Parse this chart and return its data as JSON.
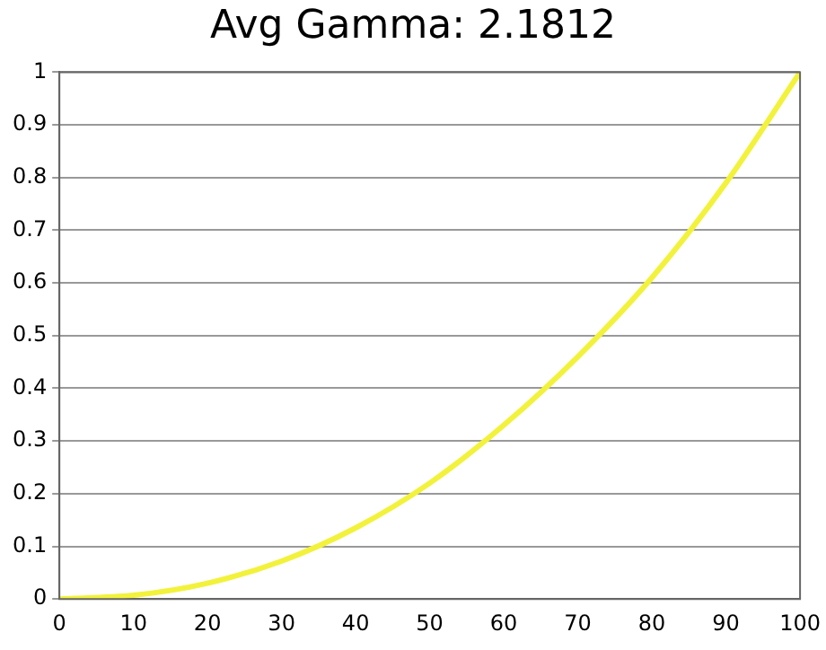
{
  "chart_data": {
    "type": "line",
    "title": "Avg Gamma: 2.1812",
    "x": [
      0,
      10,
      20,
      30,
      40,
      50,
      60,
      70,
      80,
      90,
      100
    ],
    "series": [
      {
        "color": "#f2f23c",
        "values": [
          0,
          0.007,
          0.03,
          0.072,
          0.135,
          0.22,
          0.33,
          0.46,
          0.61,
          0.79,
          1
        ]
      }
    ],
    "xlim": [
      0,
      100
    ],
    "xticks": [
      0,
      10,
      20,
      30,
      40,
      50,
      60,
      70,
      80,
      90,
      100
    ],
    "ylim": [
      0,
      1
    ],
    "yticks": [
      0,
      0.1,
      0.2,
      0.3,
      0.4,
      0.5,
      0.6,
      0.7,
      0.8,
      0.9,
      1
    ],
    "grid": "y",
    "legend": false,
    "marker": "none",
    "line_style": "solid"
  }
}
